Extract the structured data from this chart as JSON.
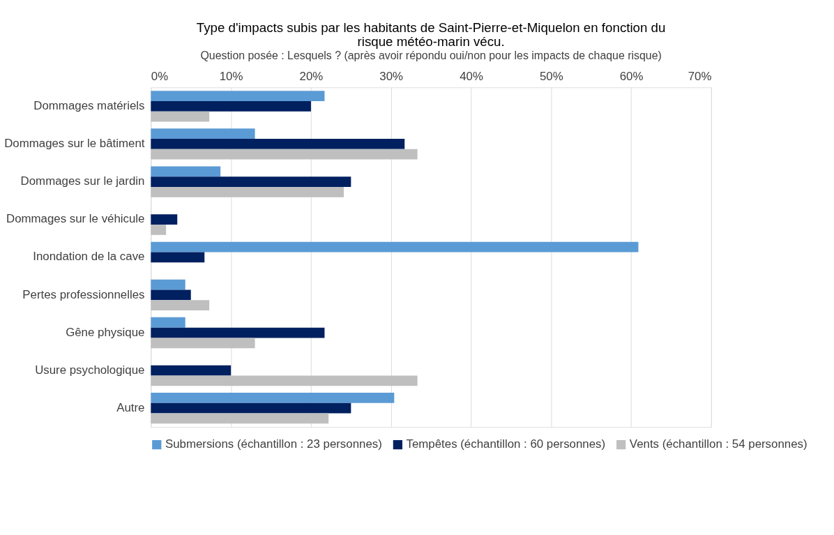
{
  "chart_data": {
    "type": "bar",
    "orientation": "horizontal",
    "title": "Type d'impacts subis par les habitants de Saint-Pierre-et-Miquelon en fonction du risque météo-marin vécu.",
    "subtitle": "Question posée : Lesquels ? (après avoir répondu oui/non pour les impacts de chaque risque)",
    "categories": [
      "Dommages matériels",
      "Dommages sur le bâtiment",
      "Dommages sur le jardin",
      "Dommages sur le véhicule",
      "Inondation de la cave",
      "Pertes professionnelles",
      "Gêne physique",
      "Usure psychologique",
      "Autre"
    ],
    "series": [
      {
        "name": "Submersions (échantillon : 23 personnes)",
        "color": "#5b9bd5",
        "values": [
          21.7,
          13.0,
          8.7,
          0,
          60.9,
          4.3,
          4.3,
          0,
          30.4
        ]
      },
      {
        "name": "Tempêtes (échantillon : 60 personnes)",
        "color": "#002060",
        "values": [
          20.0,
          31.7,
          25.0,
          3.3,
          6.7,
          5.0,
          21.7,
          10.0,
          25.0
        ]
      },
      {
        "name": "Vents (échantillon : 54 personnes)",
        "color": "#bfbfbf",
        "values": [
          7.3,
          33.3,
          24.1,
          1.9,
          0,
          7.3,
          13.0,
          33.3,
          22.2
        ]
      }
    ],
    "xlim": [
      0,
      70
    ],
    "xticks": [
      {
        "value": 0,
        "label": "0%"
      },
      {
        "value": 10,
        "label": "10%"
      },
      {
        "value": 20,
        "label": "20%"
      },
      {
        "value": 30,
        "label": "30%"
      },
      {
        "value": 40,
        "label": "40%"
      },
      {
        "value": 50,
        "label": "50%"
      },
      {
        "value": 60,
        "label": "60%"
      },
      {
        "value": 70,
        "label": "70%"
      }
    ],
    "grid": "x",
    "legend": "bottom"
  }
}
